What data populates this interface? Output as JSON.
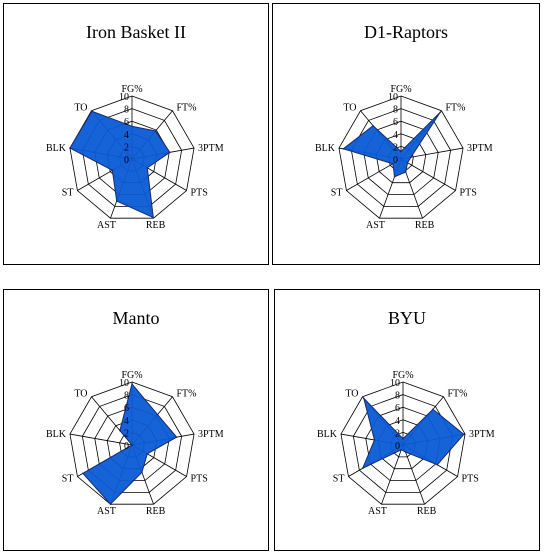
{
  "chart_data": [
    {
      "type": "radar",
      "title": "Iron Basket II",
      "categories": [
        "FG%",
        "FT%",
        "3PTM",
        "PTS",
        "REB",
        "AST",
        "ST",
        "BLK",
        "TO"
      ],
      "values": [
        5.2,
        5.8,
        6.1,
        2.8,
        9.9,
        7.1,
        3.6,
        10.0,
        9.9
      ],
      "rlim": [
        0,
        10
      ],
      "rticks": [
        "0",
        "2",
        "4",
        "6",
        "8",
        "10"
      ],
      "color": "#0a5bd6",
      "grid": true
    },
    {
      "type": "radar",
      "title": "D1-Raptors",
      "categories": [
        "FG%",
        "FT%",
        "3PTM",
        "PTS",
        "REB",
        "AST",
        "ST",
        "BLK",
        "TO"
      ],
      "values": [
        1.2,
        9.7,
        1.6,
        1.2,
        2.2,
        3.0,
        1.5,
        9.3,
        6.9
      ],
      "rlim": [
        0,
        10
      ],
      "rticks": [
        "0",
        "2",
        "4",
        "6",
        "8",
        "10"
      ],
      "color": "#0a5bd6",
      "grid": true
    },
    {
      "type": "radar",
      "title": "Manto",
      "categories": [
        "FG%",
        "FT%",
        "3PTM",
        "PTS",
        "REB",
        "AST",
        "ST",
        "BLK",
        "TO"
      ],
      "values": [
        9.7,
        6.3,
        7.2,
        2.8,
        4.6,
        10.0,
        9.0,
        0.0,
        3.0
      ],
      "rlim": [
        0,
        10
      ],
      "rticks": [
        "0",
        "2",
        "4",
        "6",
        "8",
        "10"
      ],
      "color": "#0a5bd6",
      "grid": true
    },
    {
      "type": "radar",
      "title": "BYU",
      "categories": [
        "FG%",
        "FT%",
        "3PTM",
        "PTS",
        "REB",
        "AST",
        "ST",
        "BLK",
        "TO"
      ],
      "values": [
        1.0,
        7.4,
        9.8,
        6.3,
        1.2,
        0.8,
        7.4,
        4.6,
        9.7
      ],
      "rlim": [
        0,
        10
      ],
      "rticks": [
        "0",
        "2",
        "4",
        "6",
        "8",
        "10"
      ],
      "color": "#0a5bd6",
      "grid": true
    }
  ]
}
